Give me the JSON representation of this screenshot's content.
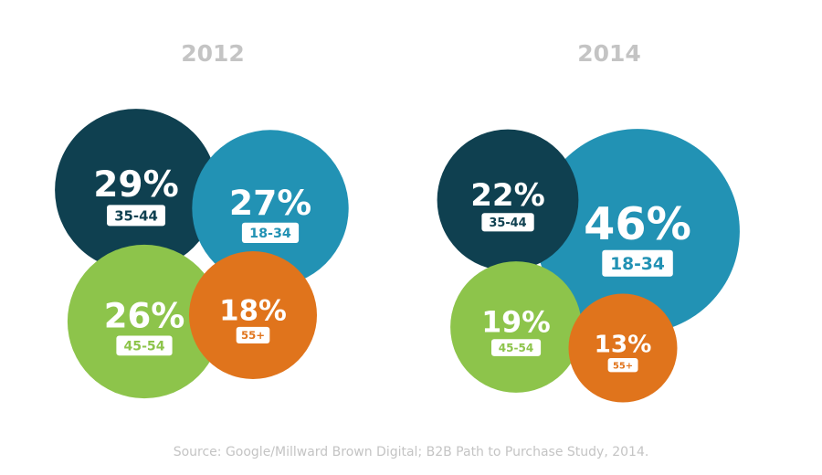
{
  "chart_data": [
    {
      "type": "bubble",
      "title": "2012",
      "series": [
        {
          "label": "35-44",
          "value": 29,
          "display": "29%",
          "color": "#0f4050"
        },
        {
          "label": "18-34",
          "value": 27,
          "display": "27%",
          "color": "#2292b4"
        },
        {
          "label": "45-54",
          "value": 26,
          "display": "26%",
          "color": "#8dc44b"
        },
        {
          "label": "55+",
          "value": 18,
          "display": "18%",
          "color": "#e0741c"
        }
      ]
    },
    {
      "type": "bubble",
      "title": "2014",
      "series": [
        {
          "label": "35-44",
          "value": 22,
          "display": "22%",
          "color": "#0f4050"
        },
        {
          "label": "18-34",
          "value": 46,
          "display": "46%",
          "color": "#2292b4"
        },
        {
          "label": "45-54",
          "value": 19,
          "display": "19%",
          "color": "#8dc44b"
        },
        {
          "label": "55+",
          "value": 13,
          "display": "13%",
          "color": "#e0741c"
        }
      ]
    }
  ],
  "footer": {
    "source": "Source: Google/Millward Brown Digital; B2B Path to Purchase Study, 2014."
  }
}
